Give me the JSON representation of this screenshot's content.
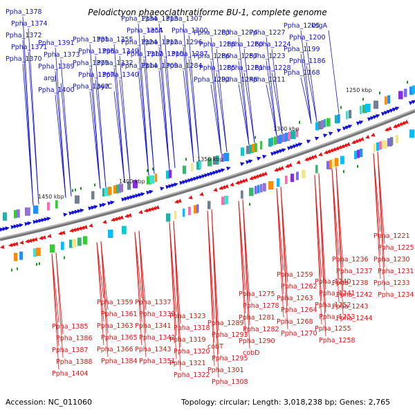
{
  "title": "Pelodictyon phaeoclathratiforme BU-1, complete genome",
  "accession": "Accession: NC_011060",
  "topology": "Topology: circular; Length: 3,018,238 bp; Genes: 2,765",
  "colors": {
    "forward": "#1010dd",
    "reverse": "#ee1010",
    "backbone": "#777777"
  },
  "scale_labels": [
    "1250 kbp",
    "1300 kbp",
    "1350 kbp",
    "1400 kbp",
    "1450 kbp"
  ],
  "top_labels": [
    "Ppha_1378",
    "Ppha_1374",
    "Ppha_1372",
    "Ppha_1371",
    "Ppha_1370",
    "Ppha_1391",
    "Ppha_1373",
    "Ppha_1389",
    "argJ",
    "Ppha_1400",
    "Ppha_1381",
    "Ppha_1396",
    "Ppha_1379",
    "Ppha_1367",
    "Ppha_1362",
    "Ppha_1355",
    "Ppha_1349",
    "Ppha_1332",
    "Ppha_1340",
    "pyrC",
    "Ppha_1334",
    "Ppha_1354",
    "Ppha_1324",
    "Ppha_1317",
    "Ppha_1314",
    "Ppha_1313",
    "secA",
    "Ppha_1312",
    "Ppha_1310",
    "Ppha_1309",
    "Ppha_1307",
    "Ppha_1300",
    "Ppha_1296",
    "Ppha_1287",
    "Ppha_1284",
    "Ppha_1283",
    "Ppha_1288",
    "Ppha_1286",
    "Ppha_1285",
    "Ppha_1292",
    "Ppha_1274",
    "Ppha_1260",
    "Ppha_1257",
    "Ppha_1261",
    "Ppha_1248",
    "Ppha_1227",
    "Ppha_1224",
    "Ppha_1223",
    "Ppha_1228",
    "Ppha_1211",
    "Ppha_1205",
    "Ppha_1200",
    "Ppha_1199",
    "Ppha_1186",
    "Ppha_1168",
    "ksgA"
  ],
  "bottom_labels": [
    "Ppha_1221",
    "Ppha_1225",
    "Ppha_1230",
    "Ppha_1231",
    "Ppha_1233",
    "Ppha_1234",
    "Ppha_1236",
    "Ppha_1237",
    "Ppha_1238",
    "Ppha_1242",
    "Ppha_1243",
    "Ppha_1244",
    "Ppha_1240",
    "Ppha_1241",
    "Ppha_1252",
    "Ppha_1253",
    "Ppha_1255",
    "Ppha_1258",
    "Ppha_1259",
    "Ppha_1262",
    "Ppha_1263",
    "Ppha_1264",
    "Ppha_1268",
    "Ppha_1270",
    "Ppha_1275",
    "Ppha_1278",
    "Ppha_1281",
    "Ppha_1282",
    "Ppha_1290",
    "cobD",
    "Ppha_1289",
    "Ppha_1293",
    "cobT",
    "Ppha_1295",
    "Ppha_1301",
    "Ppha_1308",
    "Ppha_1323",
    "Ppha_1318",
    "Ppha_1319",
    "Ppha_1320",
    "Ppha_1321",
    "Ppha_1322",
    "Ppha_1337",
    "Ppha_1339",
    "Ppha_1341",
    "Ppha_1342",
    "Ppha_1343",
    "Ppha_1351",
    "Ppha_1359",
    "Ppha_1361",
    "Ppha_1363",
    "Ppha_1365",
    "Ppha_1366",
    "Ppha_1384",
    "Ppha_1385",
    "Ppha_1386",
    "Ppha_1387",
    "Ppha_1388",
    "Ppha_1404"
  ]
}
